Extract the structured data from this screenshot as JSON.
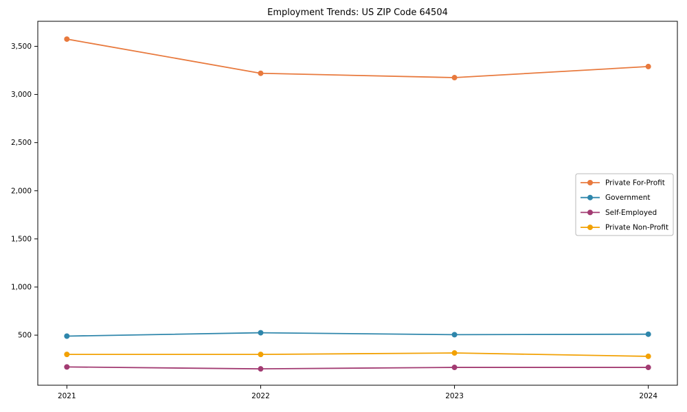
{
  "chart_data": {
    "type": "line",
    "title": "Employment Trends: US ZIP Code 64504",
    "xlabel": "",
    "ylabel": "",
    "categories": [
      "2021",
      "2022",
      "2023",
      "2024"
    ],
    "series": [
      {
        "name": "Private For-Profit",
        "color": "#E8793D",
        "values": [
          3575,
          3220,
          3175,
          3290
        ]
      },
      {
        "name": "Government",
        "color": "#2E86AB",
        "values": [
          490,
          525,
          505,
          510
        ]
      },
      {
        "name": "Self-Employed",
        "color": "#A23B72",
        "values": [
          170,
          150,
          165,
          165
        ]
      },
      {
        "name": "Private Non-Profit",
        "color": "#F2A104",
        "values": [
          300,
          300,
          315,
          280
        ]
      }
    ],
    "ylim": [
      -20,
      3760
    ],
    "yticks": [
      500,
      1000,
      1500,
      2000,
      2500,
      3000,
      3500
    ],
    "ytick_labels": [
      "500",
      "1,000",
      "1,500",
      "2,000",
      "2,500",
      "3,000",
      "3,500"
    ],
    "grid": false,
    "legend_position": "center right",
    "axis_color": "#000000",
    "legend_border_color": "#b8b8b8",
    "legend_background": "#ffffff"
  }
}
